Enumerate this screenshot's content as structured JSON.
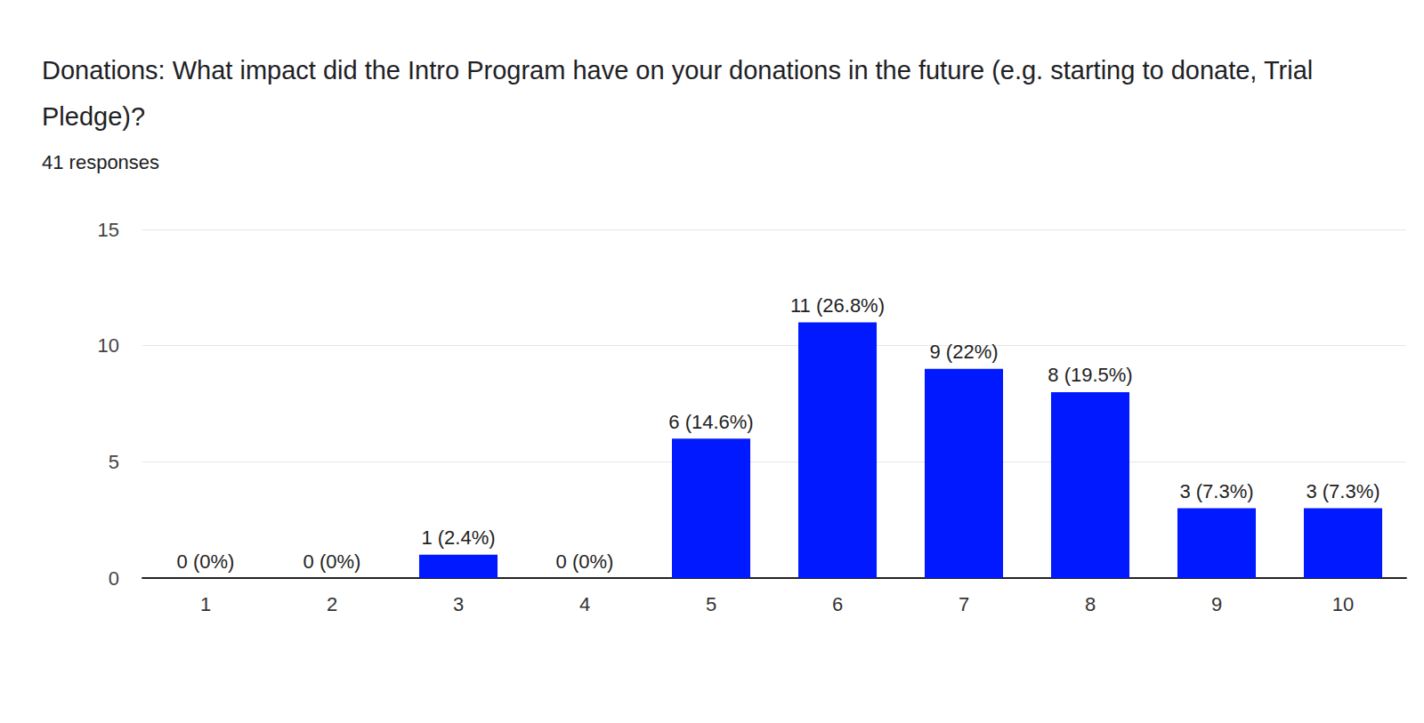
{
  "chart_data": {
    "type": "bar",
    "title": "Donations: What impact did the Intro Program have on your donations in the future (e.g. starting to donate, Trial Pledge)?",
    "subtitle": "41 responses",
    "categories": [
      "1",
      "2",
      "3",
      "4",
      "5",
      "6",
      "7",
      "8",
      "9",
      "10"
    ],
    "values": [
      0,
      0,
      1,
      0,
      6,
      11,
      9,
      8,
      3,
      3
    ],
    "value_labels": [
      "0 (0%)",
      "0 (0%)",
      "1 (2.4%)",
      "0 (0%)",
      "6 (14.6%)",
      "11 (26.8%)",
      "9 (22%)",
      "8 (19.5%)",
      "3 (7.3%)",
      "3 (7.3%)"
    ],
    "data_labels": true,
    "color": "#0019ff",
    "ylim": [
      0,
      15
    ],
    "yticks": [
      0,
      5,
      10,
      15
    ],
    "grid": true
  }
}
